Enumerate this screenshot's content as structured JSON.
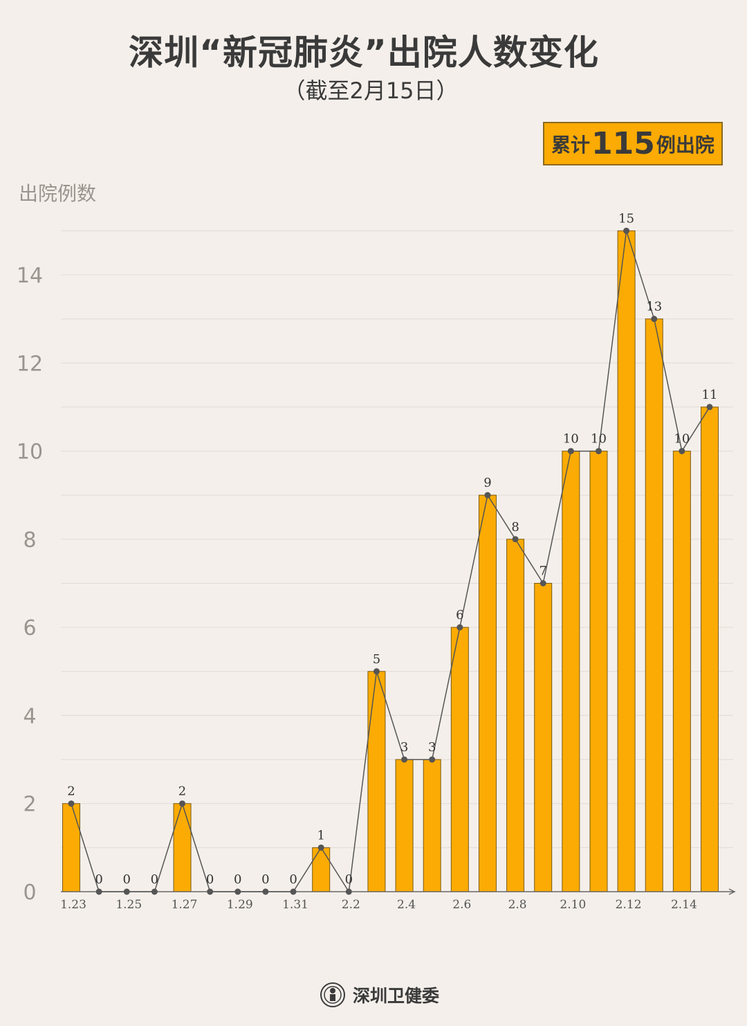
{
  "title": "深圳“新冠肺炎”出院人数变化",
  "subtitle": "（截至2月15日）",
  "badge": {
    "prefix": "累计",
    "number": "115",
    "suffix": "例出院"
  },
  "footer": {
    "org": "深圳卫健委"
  },
  "colors": {
    "bar": "#fbab03",
    "bar_border": "#7a5a14",
    "line": "#555555",
    "background": "#f4efea"
  },
  "chart_data": {
    "type": "bar",
    "ylabel": "出院例数",
    "ylim": [
      0,
      15
    ],
    "yticks": [
      0,
      2,
      4,
      6,
      8,
      10,
      12,
      14
    ],
    "grid": true,
    "categories": [
      "1.23",
      "1.24",
      "1.25",
      "1.26",
      "1.27",
      "1.28",
      "1.29",
      "1.30",
      "1.31",
      "2.1",
      "2.2",
      "2.3",
      "2.4",
      "2.5",
      "2.6",
      "2.7",
      "2.8",
      "2.9",
      "2.10",
      "2.11",
      "2.12",
      "2.13",
      "2.14",
      "2.15"
    ],
    "xtick_labels": [
      "1.23",
      "1.25",
      "1.27",
      "1.29",
      "1.31",
      "2.2",
      "2.4",
      "2.6",
      "2.8",
      "2.10",
      "2.12",
      "2.14"
    ],
    "values": [
      2,
      0,
      0,
      0,
      2,
      0,
      0,
      0,
      0,
      1,
      0,
      5,
      3,
      3,
      6,
      9,
      8,
      7,
      10,
      10,
      15,
      13,
      10,
      11
    ],
    "overlay_line": true
  }
}
